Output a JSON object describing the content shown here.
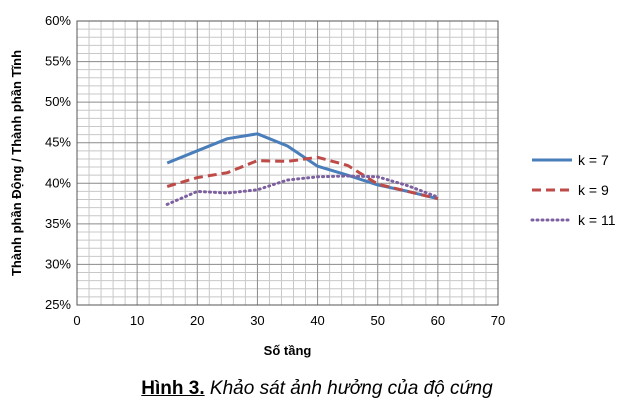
{
  "chart_data": {
    "type": "line",
    "title": "",
    "xlabel": "Số tầng",
    "ylabel": "Thành phần Động / Thành phần Tĩnh",
    "xlim": [
      0,
      70
    ],
    "ylim": [
      0.25,
      0.6
    ],
    "x_ticks": [
      0,
      10,
      20,
      30,
      40,
      50,
      60,
      70
    ],
    "y_ticks": [
      "25%",
      "30%",
      "35%",
      "40%",
      "45%",
      "50%",
      "55%",
      "60%"
    ],
    "y_tick_values": [
      0.25,
      0.3,
      0.35,
      0.4,
      0.45,
      0.5,
      0.55,
      0.6
    ],
    "grid": true,
    "legend_position": "right",
    "x": [
      15,
      20,
      25,
      30,
      35,
      40,
      45,
      50,
      55,
      60
    ],
    "series": [
      {
        "name": "k = 7",
        "color": "#4a7ebb",
        "style": "solid",
        "values": [
          0.425,
          0.44,
          0.455,
          0.461,
          0.446,
          0.421,
          0.41,
          0.398,
          0.39,
          0.381
        ]
      },
      {
        "name": "k = 9",
        "color": "#be4b48",
        "style": "dashed",
        "values": [
          0.396,
          0.407,
          0.413,
          0.428,
          0.427,
          0.432,
          0.422,
          0.399,
          0.39,
          0.381
        ]
      },
      {
        "name": "k = 11",
        "color": "#7d60a0",
        "style": "dotted",
        "values": [
          0.374,
          0.39,
          0.388,
          0.392,
          0.404,
          0.408,
          0.409,
          0.408,
          0.397,
          0.383
        ]
      }
    ]
  },
  "caption": {
    "label": "Hình 3.",
    "text": " Khảo sát ảnh hưởng của độ cứng"
  }
}
